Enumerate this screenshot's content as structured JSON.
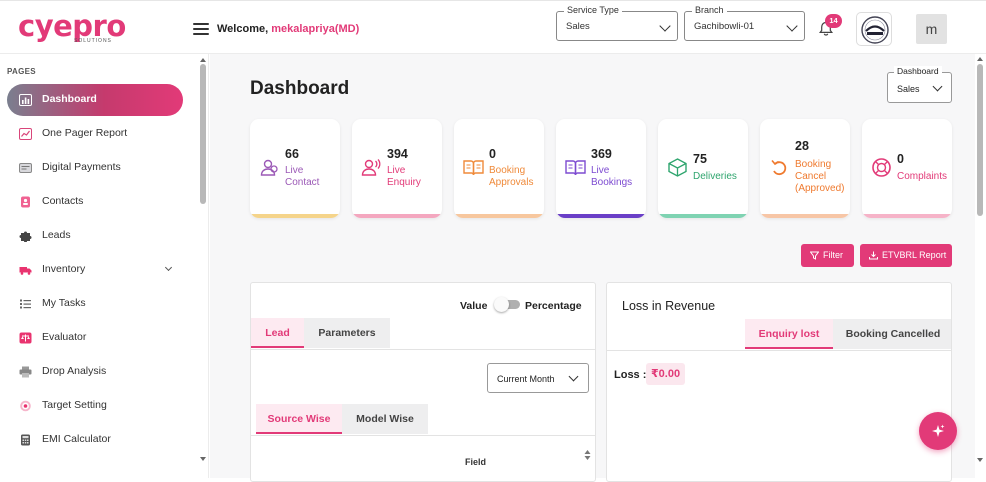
{
  "brand": {
    "logo_text": "cyepro",
    "logo_sub": "SOLUTIONS",
    "accent": "#e23a78"
  },
  "header": {
    "welcome_prefix": "Welcome,",
    "user_name": "mekalapriya(MD)",
    "service_type": {
      "label": "Service Type",
      "value": "Sales"
    },
    "branch": {
      "label": "Branch",
      "value": "Gachibowli-01"
    },
    "notification_count": "14",
    "avatar_initial": "m"
  },
  "sidebar": {
    "section_label": "PAGES",
    "items": [
      {
        "label": "Dashboard",
        "icon": "bar-chart-icon",
        "active": true
      },
      {
        "label": "One Pager Report",
        "icon": "line-chart-icon"
      },
      {
        "label": "Digital Payments",
        "icon": "card-icon"
      },
      {
        "label": "Contacts",
        "icon": "contact-book-icon"
      },
      {
        "label": "Leads",
        "icon": "puzzle-icon"
      },
      {
        "label": "Inventory",
        "icon": "truck-icon",
        "expandable": true
      },
      {
        "label": "My Tasks",
        "icon": "task-list-icon"
      },
      {
        "label": "Evaluator",
        "icon": "scale-icon"
      },
      {
        "label": "Drop Analysis",
        "icon": "printer-icon"
      },
      {
        "label": "Target Setting",
        "icon": "target-icon"
      },
      {
        "label": "EMI Calculator",
        "icon": "calculator-icon"
      }
    ]
  },
  "main": {
    "title": "Dashboard",
    "dashboard_select": {
      "label": "Dashboard",
      "value": "Sales"
    },
    "cards": [
      {
        "value": "66",
        "label_lines": [
          "Live",
          "Contact"
        ],
        "icon": "people-icon",
        "color": "#9b59b6",
        "bar": "#f5d48a"
      },
      {
        "value": "394",
        "label_lines": [
          "Live",
          "Enquiry"
        ],
        "icon": "user-signal-icon",
        "color": "#e23a78",
        "bar": "#f4a7bf"
      },
      {
        "value": "0",
        "label_lines": [
          "Booking",
          "Approvals"
        ],
        "icon": "open-book-icon",
        "color": "#ef8a3a",
        "bar": "#f7c79e"
      },
      {
        "value": "369",
        "label_lines": [
          "Live",
          "Bookings"
        ],
        "icon": "book-icon",
        "color": "#7d4bd1",
        "bar": "#6a3fc7"
      },
      {
        "value": "75",
        "label_lines": [
          "Deliveries"
        ],
        "icon": "delivery-box-icon",
        "color": "#2fa56e",
        "bar": "#7fd3b2"
      },
      {
        "value": "28",
        "label_lines": [
          "Booking",
          "Cancel",
          "(Approved)"
        ],
        "icon": "undo-icon",
        "color": "#ef7a2f",
        "bar": "#f7c6a6"
      },
      {
        "value": "0",
        "label_lines": [
          "Complaints"
        ],
        "icon": "lifebuoy-icon",
        "color": "#e23a78",
        "bar": "#f6b3c8"
      }
    ],
    "filter_button": "Filter",
    "report_button": "ETVBRL Report",
    "left_panel": {
      "toggle_left": "Value",
      "toggle_right": "Percentage",
      "tabs": [
        "Lead",
        "Parameters"
      ],
      "active_tab": "Lead",
      "period_select": "Current Month",
      "subtabs": [
        "Source Wise",
        "Model Wise"
      ],
      "active_subtab": "Source Wise",
      "column_header": "Field"
    },
    "right_panel": {
      "title": "Loss in Revenue",
      "tabs": [
        "Enquiry lost",
        "Booking Cancelled"
      ],
      "active_tab": "Enquiry lost",
      "loss_label": "Loss :",
      "loss_value": "₹0.00"
    }
  }
}
